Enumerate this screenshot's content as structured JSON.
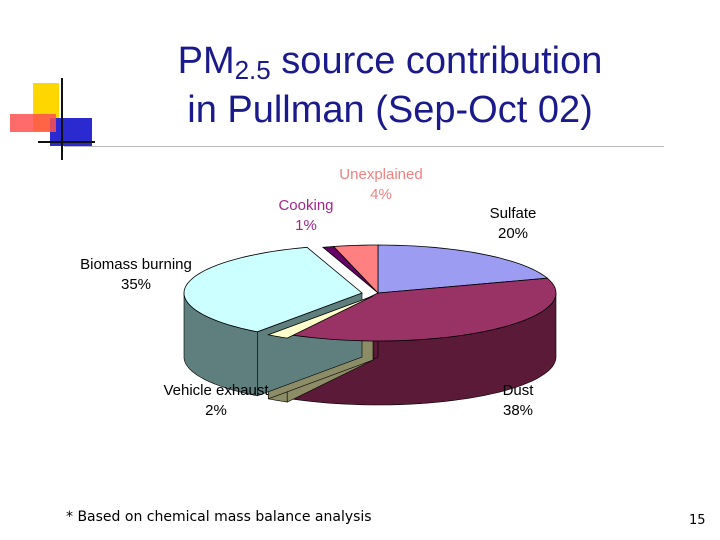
{
  "slide": {
    "title_main": "PM",
    "title_sub": "2.5",
    "title_rest": " source contribution",
    "title_line2": "in Pullman (Sep-Oct 02)",
    "footnote": "* Based on chemical mass balance analysis",
    "page_number": "15"
  },
  "chart_data": {
    "type": "pie",
    "style": "3d-exploded",
    "slices": [
      {
        "name": "Sulfate",
        "percent_label": "20%",
        "value": 20,
        "color": "#9c9cf2",
        "side_color": "#5a5aa0",
        "label_color": "#000000"
      },
      {
        "name": "Dust",
        "percent_label": "38%",
        "value": 38,
        "color": "#993366",
        "side_color": "#5a1a38",
        "label_color": "#000000"
      },
      {
        "name": "Vehicle exhaust",
        "percent_label": "2%",
        "value": 2,
        "color": "#ffffcc",
        "side_color": "#8c8c66",
        "label_color": "#000000"
      },
      {
        "name": "Biomass burning",
        "percent_label": "35%",
        "value": 35,
        "color": "#ccffff",
        "side_color": "#5f7f7f",
        "label_color": "#000000"
      },
      {
        "name": "Cooking",
        "percent_label": "1%",
        "value": 1,
        "color": "#660066",
        "side_color": "#330033",
        "label_color": "#a0288a"
      },
      {
        "name": "Unexplained",
        "percent_label": "4%",
        "value": 4,
        "color": "#ff8080",
        "side_color": "#a04848",
        "label_color": "#f08080"
      }
    ]
  }
}
